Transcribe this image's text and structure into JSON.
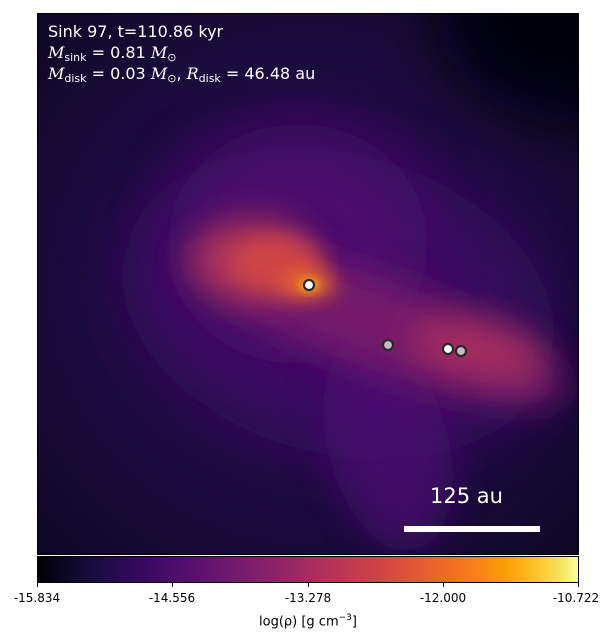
{
  "header": {
    "title": "Sink 97, t=110.86 kyr",
    "msink": "0.81",
    "mdisk": "0.03",
    "rdisk": "46.48"
  },
  "scale_bar": {
    "label": "125 au"
  },
  "colorbar": {
    "colormap": "inferno",
    "ticks": [
      "-15.834",
      "-14.556",
      "-13.278",
      "-12.000",
      "-10.722"
    ],
    "label_prefix": "log(ρ) [g cm",
    "label_exp": "−3",
    "label_suffix": "]"
  },
  "sinks": [
    {
      "label": "sink",
      "fill": "#ffffff"
    },
    {
      "label": "sink",
      "fill": "#c8b8c8"
    },
    {
      "label": "sink",
      "fill": "#ffffff"
    },
    {
      "label": "sink",
      "fill": "#c8b8c8"
    }
  ]
}
